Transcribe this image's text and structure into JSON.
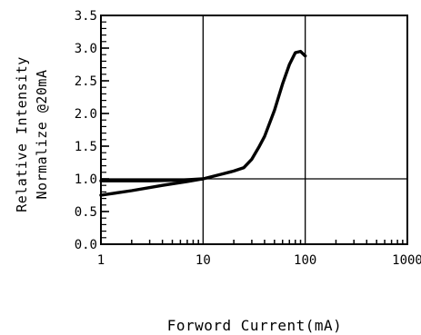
{
  "chart_data": {
    "type": "line",
    "title": "",
    "xlabel": "Forword Current(mA)",
    "ylabel": [
      "Relative Intensity",
      "Normalize @20mA"
    ],
    "x_scale": "log",
    "xlim": [
      1,
      1000
    ],
    "ylim": [
      0,
      3.5
    ],
    "x_ticks": [
      1,
      10,
      100,
      1000
    ],
    "x_tick_labels": [
      "1",
      "10",
      "100",
      "1000"
    ],
    "y_ticks": [
      0.0,
      0.5,
      1.0,
      1.5,
      2.0,
      2.5,
      3.0,
      3.5
    ],
    "y_tick_labels": [
      "0.0",
      "0.5",
      "1.0",
      "1.5",
      "2.0",
      "2.5",
      "3.0",
      "3.5"
    ],
    "grid": "major",
    "series": [
      {
        "x": [
          1,
          2,
          4,
          7,
          10,
          15,
          20,
          25,
          30,
          35,
          40,
          50,
          60,
          70,
          80,
          90,
          100
        ],
        "y": [
          0.75,
          0.82,
          0.9,
          0.96,
          1.0,
          1.07,
          1.12,
          1.17,
          1.3,
          1.48,
          1.65,
          2.05,
          2.45,
          2.75,
          2.93,
          2.95,
          2.88
        ]
      },
      {
        "x": [
          1,
          3,
          6,
          10
        ],
        "y": [
          0.97,
          0.97,
          0.98,
          1.0
        ]
      }
    ]
  }
}
